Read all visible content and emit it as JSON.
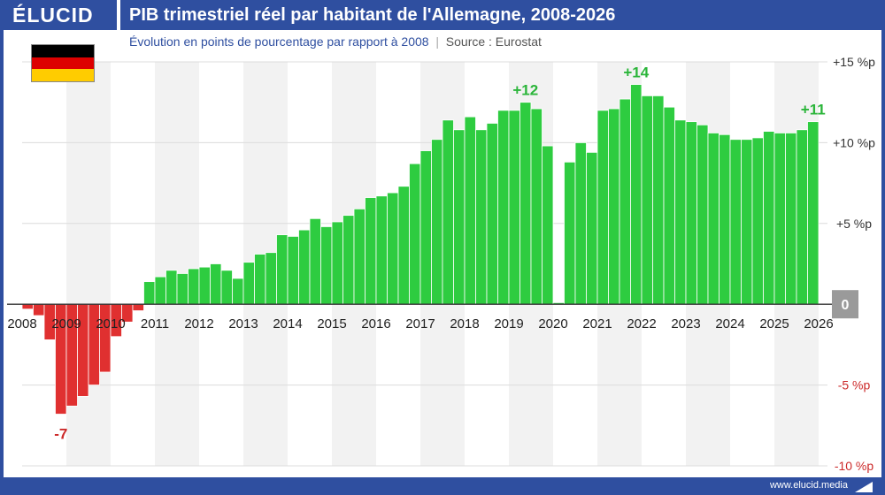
{
  "header": {
    "logo": "ÉLUCID",
    "title": "PIB trimestriel réel par habitant de l'Allemagne, 2008-2026",
    "subtitle": "Évolution en points de pourcentage par rapport à 2008",
    "source": "Source : Eurostat"
  },
  "footer": {
    "link": "www.elucid.media"
  },
  "colors": {
    "brand": "#2f4fa0",
    "positive": "#2ecc40",
    "negative": "#e03030",
    "positive_label": "#2bb53a",
    "negative_label": "#cc2a2a"
  },
  "flag": {
    "icon": "germany-flag-icon",
    "colors": [
      "#000000",
      "#dd0000",
      "#ffcc00"
    ]
  },
  "chart_data": {
    "type": "bar",
    "title": "PIB trimestriel réel par habitant de l'Allemagne, 2008-2026",
    "subtitle": "Évolution en points de pourcentage par rapport à 2008",
    "ylim": [
      -10,
      15
    ],
    "y_ticks": [
      {
        "value": 15,
        "label": "+15 %p"
      },
      {
        "value": 10,
        "label": "+10 %p"
      },
      {
        "value": 5,
        "label": "+5 %p"
      },
      {
        "value": 0,
        "label": "0"
      },
      {
        "value": -5,
        "label": "-5 %p"
      },
      {
        "value": -10,
        "label": "-10 %p"
      }
    ],
    "year_labels": [
      "2008",
      "2009",
      "2010",
      "2011",
      "2012",
      "2013",
      "2014",
      "2015",
      "2016",
      "2017",
      "2018",
      "2019",
      "2020",
      "2021",
      "2022",
      "2023",
      "2024",
      "2025",
      "2026"
    ],
    "start_year": 2008,
    "values": [
      -0.3,
      -0.7,
      -2.2,
      -6.8,
      -6.3,
      -5.7,
      -5.0,
      -4.2,
      -2.0,
      -1.1,
      -0.4,
      1.4,
      1.7,
      2.1,
      1.9,
      2.2,
      2.3,
      2.5,
      2.1,
      1.6,
      2.6,
      3.1,
      3.2,
      4.3,
      4.2,
      4.6,
      5.3,
      4.8,
      5.1,
      5.5,
      5.9,
      6.6,
      6.7,
      6.9,
      7.3,
      8.7,
      9.5,
      10.2,
      11.4,
      10.8,
      11.6,
      10.8,
      11.2,
      12.0,
      12.0,
      12.5,
      12.1,
      9.8,
      0.1,
      8.8,
      10.0,
      9.4,
      12.0,
      12.1,
      12.7,
      13.6,
      12.9,
      12.9,
      12.2,
      11.4,
      11.3,
      11.1,
      10.6,
      10.5,
      10.2,
      10.2,
      10.3,
      10.7,
      10.6,
      10.6,
      10.8,
      11.3
    ],
    "annotations": [
      {
        "text": "-7",
        "index": 3,
        "value": -6.8
      },
      {
        "text": "+12",
        "index": 45,
        "value": 12.5
      },
      {
        "text": "+14",
        "index": 55,
        "value": 13.6
      },
      {
        "text": "+11",
        "index": 71,
        "value": 11.3
      }
    ],
    "grid": true
  }
}
